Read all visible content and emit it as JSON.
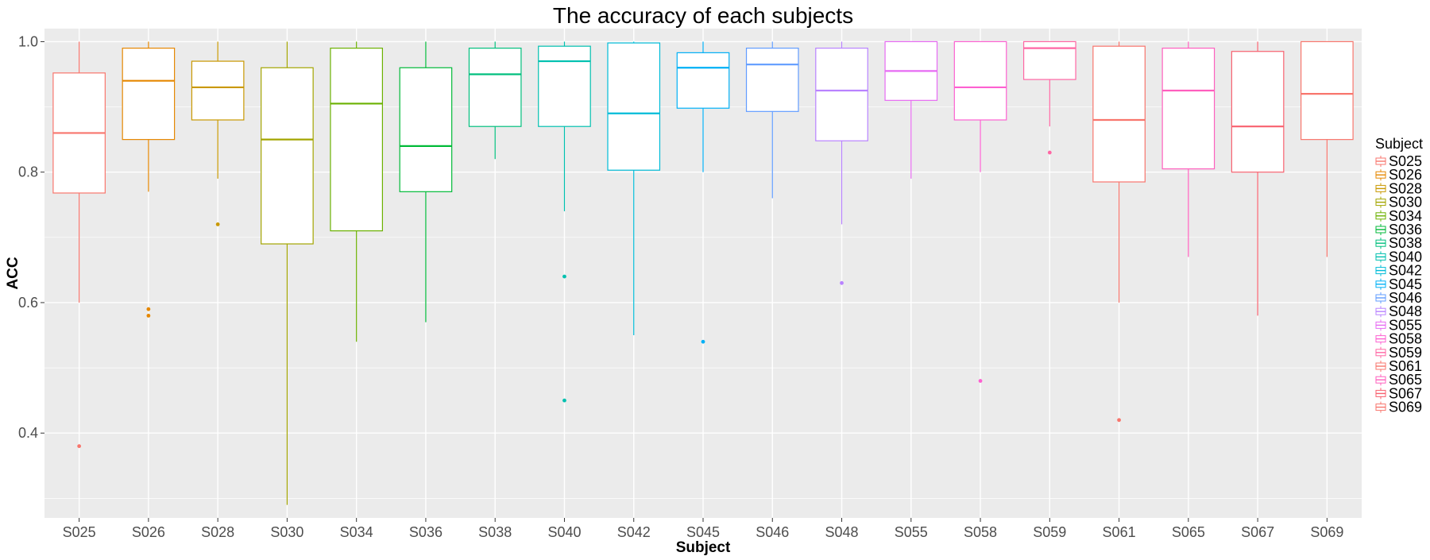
{
  "chart_data": {
    "type": "boxplot",
    "title": "The accuracy of each subjects",
    "xlabel": "Subject",
    "ylabel": "ACC",
    "ylim": [
      0.27,
      1.02
    ],
    "y_ticks": [
      0.4,
      0.6,
      0.8,
      1.0
    ],
    "y_tick_labels": [
      "0.4",
      "0.6",
      "0.8",
      "1.0"
    ],
    "grid": true,
    "legend": {
      "title": "Subject",
      "position": "right"
    },
    "categories": [
      "S025",
      "S026",
      "S028",
      "S030",
      "S034",
      "S036",
      "S038",
      "S040",
      "S042",
      "S045",
      "S046",
      "S048",
      "S055",
      "S058",
      "S059",
      "S061",
      "S065",
      "S067",
      "S069"
    ],
    "colors": [
      "#F8766D",
      "#E58700",
      "#C99800",
      "#A3A500",
      "#6BB100",
      "#00BA38",
      "#00BF7D",
      "#00C0AF",
      "#00BCD8",
      "#00B0F6",
      "#619CFF",
      "#B983FF",
      "#E76BF3",
      "#FD61D1",
      "#FF67A4",
      "#F8766D",
      "#FF5FBE",
      "#F8616F",
      "#F8766D"
    ],
    "boxes": [
      {
        "name": "S025",
        "min": 0.6,
        "q1": 0.768,
        "median": 0.86,
        "q3": 0.952,
        "max": 1.0,
        "outliers": [
          0.38
        ]
      },
      {
        "name": "S026",
        "min": 0.77,
        "q1": 0.85,
        "median": 0.94,
        "q3": 0.99,
        "max": 1.0,
        "outliers": [
          0.59,
          0.58
        ]
      },
      {
        "name": "S028",
        "min": 0.79,
        "q1": 0.88,
        "median": 0.93,
        "q3": 0.97,
        "max": 1.0,
        "outliers": [
          0.72
        ]
      },
      {
        "name": "S030",
        "min": 0.29,
        "q1": 0.69,
        "median": 0.85,
        "q3": 0.96,
        "max": 1.0,
        "outliers": []
      },
      {
        "name": "S034",
        "min": 0.54,
        "q1": 0.71,
        "median": 0.905,
        "q3": 0.99,
        "max": 1.0,
        "outliers": []
      },
      {
        "name": "S036",
        "min": 0.57,
        "q1": 0.77,
        "median": 0.84,
        "q3": 0.96,
        "max": 1.0,
        "outliers": []
      },
      {
        "name": "S038",
        "min": 0.82,
        "q1": 0.87,
        "median": 0.95,
        "q3": 0.99,
        "max": 1.0,
        "outliers": []
      },
      {
        "name": "S040",
        "min": 0.74,
        "q1": 0.87,
        "median": 0.97,
        "q3": 0.993,
        "max": 1.0,
        "outliers": [
          0.64,
          0.45
        ]
      },
      {
        "name": "S042",
        "min": 0.55,
        "q1": 0.803,
        "median": 0.89,
        "q3": 0.998,
        "max": 1.0,
        "outliers": []
      },
      {
        "name": "S045",
        "min": 0.8,
        "q1": 0.898,
        "median": 0.96,
        "q3": 0.983,
        "max": 1.0,
        "outliers": [
          0.54
        ]
      },
      {
        "name": "S046",
        "min": 0.76,
        "q1": 0.893,
        "median": 0.965,
        "q3": 0.99,
        "max": 1.0,
        "outliers": []
      },
      {
        "name": "S048",
        "min": 0.72,
        "q1": 0.848,
        "median": 0.925,
        "q3": 0.99,
        "max": 1.0,
        "outliers": [
          0.63
        ]
      },
      {
        "name": "S055",
        "min": 0.79,
        "q1": 0.91,
        "median": 0.955,
        "q3": 1.0,
        "max": 1.0,
        "outliers": []
      },
      {
        "name": "S058",
        "min": 0.8,
        "q1": 0.88,
        "median": 0.93,
        "q3": 1.0,
        "max": 1.0,
        "outliers": [
          0.48
        ]
      },
      {
        "name": "S059",
        "min": 0.87,
        "q1": 0.942,
        "median": 0.99,
        "q3": 1.0,
        "max": 1.0,
        "outliers": [
          0.83
        ]
      },
      {
        "name": "S061",
        "min": 0.6,
        "q1": 0.785,
        "median": 0.88,
        "q3": 0.993,
        "max": 1.0,
        "outliers": [
          0.42
        ]
      },
      {
        "name": "S065",
        "min": 0.67,
        "q1": 0.805,
        "median": 0.925,
        "q3": 0.99,
        "max": 1.0,
        "outliers": []
      },
      {
        "name": "S067",
        "min": 0.58,
        "q1": 0.8,
        "median": 0.87,
        "q3": 0.985,
        "max": 1.0,
        "outliers": []
      },
      {
        "name": "S069",
        "min": 0.67,
        "q1": 0.85,
        "median": 0.92,
        "q3": 1.0,
        "max": 1.0,
        "outliers": []
      }
    ]
  }
}
